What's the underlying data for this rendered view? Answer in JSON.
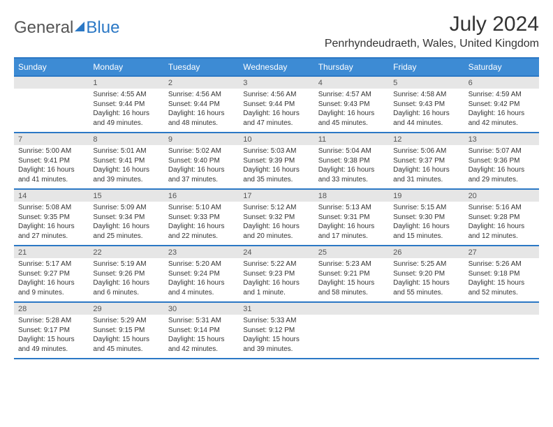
{
  "brand": {
    "name_gray": "General",
    "name_blue": "Blue"
  },
  "title": "July 2024",
  "location": "Penrhyndeudraeth, Wales, United Kingdom",
  "colors": {
    "header_bg": "#3d8bd4",
    "accent_line": "#2b78c5",
    "daynum_bg": "#e6e6e6",
    "text": "#333333"
  },
  "day_labels": [
    "Sunday",
    "Monday",
    "Tuesday",
    "Wednesday",
    "Thursday",
    "Friday",
    "Saturday"
  ],
  "weeks": [
    [
      {
        "num": "",
        "sunrise": "",
        "sunset": "",
        "daylight": ""
      },
      {
        "num": "1",
        "sunrise": "Sunrise: 4:55 AM",
        "sunset": "Sunset: 9:44 PM",
        "daylight": "Daylight: 16 hours and 49 minutes."
      },
      {
        "num": "2",
        "sunrise": "Sunrise: 4:56 AM",
        "sunset": "Sunset: 9:44 PM",
        "daylight": "Daylight: 16 hours and 48 minutes."
      },
      {
        "num": "3",
        "sunrise": "Sunrise: 4:56 AM",
        "sunset": "Sunset: 9:44 PM",
        "daylight": "Daylight: 16 hours and 47 minutes."
      },
      {
        "num": "4",
        "sunrise": "Sunrise: 4:57 AM",
        "sunset": "Sunset: 9:43 PM",
        "daylight": "Daylight: 16 hours and 45 minutes."
      },
      {
        "num": "5",
        "sunrise": "Sunrise: 4:58 AM",
        "sunset": "Sunset: 9:43 PM",
        "daylight": "Daylight: 16 hours and 44 minutes."
      },
      {
        "num": "6",
        "sunrise": "Sunrise: 4:59 AM",
        "sunset": "Sunset: 9:42 PM",
        "daylight": "Daylight: 16 hours and 42 minutes."
      }
    ],
    [
      {
        "num": "7",
        "sunrise": "Sunrise: 5:00 AM",
        "sunset": "Sunset: 9:41 PM",
        "daylight": "Daylight: 16 hours and 41 minutes."
      },
      {
        "num": "8",
        "sunrise": "Sunrise: 5:01 AM",
        "sunset": "Sunset: 9:41 PM",
        "daylight": "Daylight: 16 hours and 39 minutes."
      },
      {
        "num": "9",
        "sunrise": "Sunrise: 5:02 AM",
        "sunset": "Sunset: 9:40 PM",
        "daylight": "Daylight: 16 hours and 37 minutes."
      },
      {
        "num": "10",
        "sunrise": "Sunrise: 5:03 AM",
        "sunset": "Sunset: 9:39 PM",
        "daylight": "Daylight: 16 hours and 35 minutes."
      },
      {
        "num": "11",
        "sunrise": "Sunrise: 5:04 AM",
        "sunset": "Sunset: 9:38 PM",
        "daylight": "Daylight: 16 hours and 33 minutes."
      },
      {
        "num": "12",
        "sunrise": "Sunrise: 5:06 AM",
        "sunset": "Sunset: 9:37 PM",
        "daylight": "Daylight: 16 hours and 31 minutes."
      },
      {
        "num": "13",
        "sunrise": "Sunrise: 5:07 AM",
        "sunset": "Sunset: 9:36 PM",
        "daylight": "Daylight: 16 hours and 29 minutes."
      }
    ],
    [
      {
        "num": "14",
        "sunrise": "Sunrise: 5:08 AM",
        "sunset": "Sunset: 9:35 PM",
        "daylight": "Daylight: 16 hours and 27 minutes."
      },
      {
        "num": "15",
        "sunrise": "Sunrise: 5:09 AM",
        "sunset": "Sunset: 9:34 PM",
        "daylight": "Daylight: 16 hours and 25 minutes."
      },
      {
        "num": "16",
        "sunrise": "Sunrise: 5:10 AM",
        "sunset": "Sunset: 9:33 PM",
        "daylight": "Daylight: 16 hours and 22 minutes."
      },
      {
        "num": "17",
        "sunrise": "Sunrise: 5:12 AM",
        "sunset": "Sunset: 9:32 PM",
        "daylight": "Daylight: 16 hours and 20 minutes."
      },
      {
        "num": "18",
        "sunrise": "Sunrise: 5:13 AM",
        "sunset": "Sunset: 9:31 PM",
        "daylight": "Daylight: 16 hours and 17 minutes."
      },
      {
        "num": "19",
        "sunrise": "Sunrise: 5:15 AM",
        "sunset": "Sunset: 9:30 PM",
        "daylight": "Daylight: 16 hours and 15 minutes."
      },
      {
        "num": "20",
        "sunrise": "Sunrise: 5:16 AM",
        "sunset": "Sunset: 9:28 PM",
        "daylight": "Daylight: 16 hours and 12 minutes."
      }
    ],
    [
      {
        "num": "21",
        "sunrise": "Sunrise: 5:17 AM",
        "sunset": "Sunset: 9:27 PM",
        "daylight": "Daylight: 16 hours and 9 minutes."
      },
      {
        "num": "22",
        "sunrise": "Sunrise: 5:19 AM",
        "sunset": "Sunset: 9:26 PM",
        "daylight": "Daylight: 16 hours and 6 minutes."
      },
      {
        "num": "23",
        "sunrise": "Sunrise: 5:20 AM",
        "sunset": "Sunset: 9:24 PM",
        "daylight": "Daylight: 16 hours and 4 minutes."
      },
      {
        "num": "24",
        "sunrise": "Sunrise: 5:22 AM",
        "sunset": "Sunset: 9:23 PM",
        "daylight": "Daylight: 16 hours and 1 minute."
      },
      {
        "num": "25",
        "sunrise": "Sunrise: 5:23 AM",
        "sunset": "Sunset: 9:21 PM",
        "daylight": "Daylight: 15 hours and 58 minutes."
      },
      {
        "num": "26",
        "sunrise": "Sunrise: 5:25 AM",
        "sunset": "Sunset: 9:20 PM",
        "daylight": "Daylight: 15 hours and 55 minutes."
      },
      {
        "num": "27",
        "sunrise": "Sunrise: 5:26 AM",
        "sunset": "Sunset: 9:18 PM",
        "daylight": "Daylight: 15 hours and 52 minutes."
      }
    ],
    [
      {
        "num": "28",
        "sunrise": "Sunrise: 5:28 AM",
        "sunset": "Sunset: 9:17 PM",
        "daylight": "Daylight: 15 hours and 49 minutes."
      },
      {
        "num": "29",
        "sunrise": "Sunrise: 5:29 AM",
        "sunset": "Sunset: 9:15 PM",
        "daylight": "Daylight: 15 hours and 45 minutes."
      },
      {
        "num": "30",
        "sunrise": "Sunrise: 5:31 AM",
        "sunset": "Sunset: 9:14 PM",
        "daylight": "Daylight: 15 hours and 42 minutes."
      },
      {
        "num": "31",
        "sunrise": "Sunrise: 5:33 AM",
        "sunset": "Sunset: 9:12 PM",
        "daylight": "Daylight: 15 hours and 39 minutes."
      },
      {
        "num": "",
        "sunrise": "",
        "sunset": "",
        "daylight": ""
      },
      {
        "num": "",
        "sunrise": "",
        "sunset": "",
        "daylight": ""
      },
      {
        "num": "",
        "sunrise": "",
        "sunset": "",
        "daylight": ""
      }
    ]
  ]
}
